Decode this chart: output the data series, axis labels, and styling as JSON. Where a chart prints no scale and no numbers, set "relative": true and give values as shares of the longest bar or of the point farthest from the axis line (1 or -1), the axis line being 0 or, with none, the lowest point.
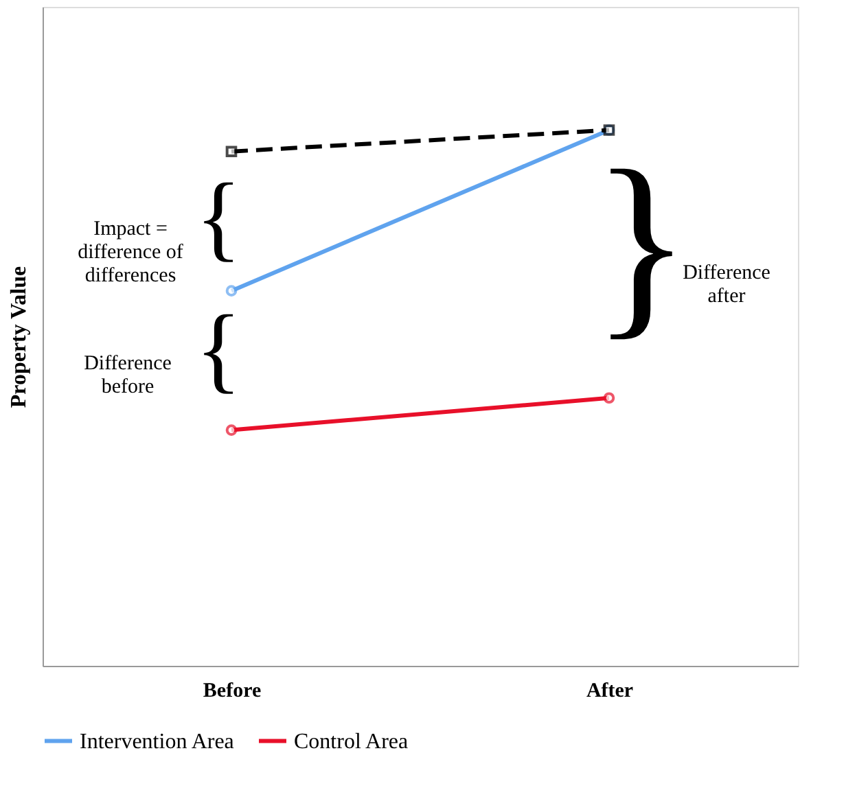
{
  "chart_data": {
    "type": "line",
    "relative": true,
    "ylabel": "Property Value",
    "categories": [
      "Before",
      "After"
    ],
    "series": [
      {
        "name": "Intervention Area",
        "color": "#5fa3ee",
        "values": [
          0.7,
          1.0
        ],
        "marker": "circle",
        "line_style": "solid"
      },
      {
        "name": "Control Area",
        "color": "#e8102a",
        "values": [
          0.44,
          0.5
        ],
        "marker": "circle",
        "line_style": "solid"
      },
      {
        "color": "#000000",
        "values": [
          0.96,
          1.0
        ],
        "marker": "square",
        "line_style": "dashed"
      }
    ],
    "annotations": [
      "Impact =\ndifference of\ndifferences",
      "{",
      "Difference\nbefore",
      "{",
      "Difference\nafter",
      "}"
    ],
    "legend": "bottom",
    "grid": false
  }
}
